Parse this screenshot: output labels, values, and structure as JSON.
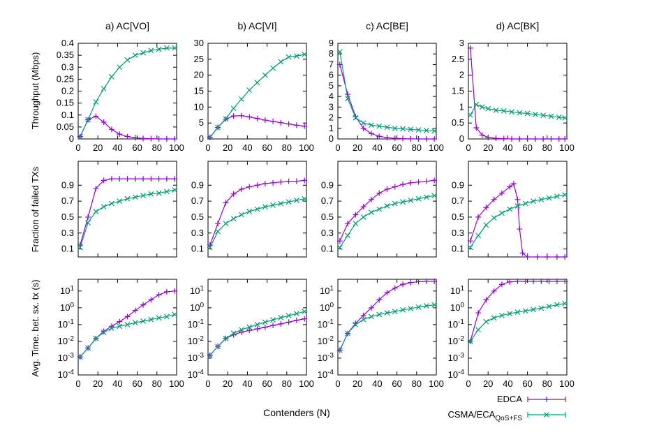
{
  "xlabel": "Contenders (N)",
  "legend": {
    "placement": "bottom-right",
    "entries": [
      {
        "label": "EDCA",
        "sub": "",
        "color": "#9400d3",
        "marker": "plus"
      },
      {
        "label": "CSMA/ECA",
        "sub": "QoS+FS",
        "color": "#009e73",
        "marker": "cross"
      }
    ]
  },
  "row_ylabels": [
    "Throughput (Mbps)",
    "Fraction of failed TXs",
    "Avg. Time. bet. sx. tx (s)"
  ],
  "colors": {
    "edca": "#9400d3",
    "csma": "#009e73"
  },
  "chart_data": [
    {
      "type": "line",
      "title": "a) AC[VO]",
      "ylabel": "Throughput (Mbps)",
      "xlim": [
        0,
        100
      ],
      "ylim": [
        0,
        0.4
      ],
      "grid": false,
      "scale": "linear",
      "xticks": [
        "0",
        "20",
        "40",
        "60",
        "80",
        "100"
      ],
      "yticks": [
        "0",
        "0.05",
        "0.1",
        "0.15",
        "0.2",
        "0.25",
        "0.3",
        "0.35",
        "0.4"
      ],
      "x": [
        2,
        10,
        18,
        26,
        34,
        42,
        50,
        58,
        66,
        74,
        82,
        90,
        98
      ],
      "series": [
        {
          "name": "EDCA",
          "values": [
            0.01,
            0.08,
            0.095,
            0.07,
            0.04,
            0.02,
            0.01,
            0.005,
            0.002,
            0.001,
            0,
            0,
            0
          ]
        },
        {
          "name": "CSMA/ECA QoS+FS",
          "values": [
            0.01,
            0.08,
            0.155,
            0.21,
            0.26,
            0.3,
            0.33,
            0.35,
            0.36,
            0.37,
            0.375,
            0.38,
            0.38
          ]
        }
      ]
    },
    {
      "type": "line",
      "title": "b) AC[VI]",
      "ylabel": "",
      "xlim": [
        0,
        100
      ],
      "ylim": [
        0,
        30
      ],
      "grid": false,
      "scale": "linear",
      "xticks": [
        "0",
        "20",
        "40",
        "60",
        "80",
        "100"
      ],
      "yticks": [
        "0",
        "5",
        "10",
        "15",
        "20",
        "25",
        "30"
      ],
      "x": [
        2,
        10,
        18,
        26,
        34,
        42,
        50,
        58,
        66,
        74,
        82,
        90,
        98
      ],
      "series": [
        {
          "name": "EDCA",
          "values": [
            0.5,
            3.6,
            6.2,
            7.2,
            7.3,
            6.9,
            6.4,
            5.9,
            5.5,
            5.1,
            4.7,
            4.3,
            4.0
          ]
        },
        {
          "name": "CSMA/ECA QoS+FS",
          "values": [
            0.5,
            3.6,
            6.3,
            9.6,
            12.5,
            15.3,
            17.7,
            20.0,
            22.2,
            24.2,
            25.7,
            26.0,
            26.5
          ]
        }
      ]
    },
    {
      "type": "line",
      "title": "c) AC[BE]",
      "ylabel": "",
      "xlim": [
        0,
        100
      ],
      "ylim": [
        0,
        9
      ],
      "grid": false,
      "scale": "linear",
      "xticks": [
        "0",
        "20",
        "40",
        "60",
        "80",
        "100"
      ],
      "yticks": [
        "0",
        "1",
        "2",
        "3",
        "4",
        "5",
        "6",
        "7",
        "8",
        "9"
      ],
      "x": [
        2,
        10,
        18,
        26,
        34,
        42,
        50,
        58,
        66,
        74,
        82,
        90,
        98
      ],
      "series": [
        {
          "name": "EDCA",
          "values": [
            7.0,
            4.2,
            2.1,
            1.0,
            0.5,
            0.25,
            0.12,
            0.06,
            0.03,
            0.01,
            0,
            0,
            0
          ]
        },
        {
          "name": "CSMA/ECA QoS+FS",
          "values": [
            8.2,
            3.8,
            2.0,
            1.5,
            1.3,
            1.2,
            1.1,
            1.0,
            0.95,
            0.9,
            0.85,
            0.8,
            0.75
          ]
        }
      ]
    },
    {
      "type": "line",
      "title": "d) AC[BK]",
      "ylabel": "",
      "xlim": [
        0,
        100
      ],
      "ylim": [
        0,
        3
      ],
      "grid": false,
      "scale": "linear",
      "xticks": [
        "0",
        "20",
        "40",
        "60",
        "80",
        "100"
      ],
      "yticks": [
        "0",
        "0.5",
        "1",
        "1.5",
        "2",
        "2.5",
        "3"
      ],
      "x": [
        2,
        8,
        14,
        20,
        28,
        36,
        44,
        52,
        60,
        68,
        76,
        84,
        92,
        98
      ],
      "series": [
        {
          "name": "EDCA",
          "values": [
            2.85,
            0.35,
            0.12,
            0.05,
            0.02,
            0.01,
            0,
            0,
            0,
            0,
            0,
            0,
            0,
            0
          ]
        },
        {
          "name": "CSMA/ECA QoS+FS",
          "values": [
            0.75,
            1.08,
            1.0,
            0.95,
            0.9,
            0.88,
            0.85,
            0.82,
            0.8,
            0.77,
            0.74,
            0.71,
            0.68,
            0.66
          ]
        }
      ]
    },
    {
      "type": "line",
      "title": "",
      "ylabel": "Fraction of failed TXs",
      "xlim": [
        0,
        100
      ],
      "ylim": [
        0,
        1.2
      ],
      "grid": false,
      "scale": "linear",
      "xticks": [],
      "yticks": [
        "0.1",
        "0.3",
        "0.5",
        "0.7",
        "0.9"
      ],
      "x": [
        2,
        10,
        18,
        26,
        34,
        42,
        50,
        58,
        66,
        74,
        82,
        90,
        98
      ],
      "series": [
        {
          "name": "EDCA",
          "values": [
            0.15,
            0.5,
            0.86,
            0.96,
            0.98,
            0.98,
            0.98,
            0.98,
            0.98,
            0.98,
            0.98,
            0.98,
            0.98
          ]
        },
        {
          "name": "CSMA/ECA QoS+FS",
          "values": [
            0.12,
            0.43,
            0.57,
            0.63,
            0.67,
            0.7,
            0.73,
            0.75,
            0.77,
            0.79,
            0.8,
            0.82,
            0.84
          ]
        }
      ]
    },
    {
      "type": "line",
      "title": "",
      "ylabel": "",
      "xlim": [
        0,
        100
      ],
      "ylim": [
        0,
        1.2
      ],
      "grid": false,
      "scale": "linear",
      "xticks": [],
      "yticks": [
        "0.1",
        "0.3",
        "0.5",
        "0.7",
        "0.9"
      ],
      "x": [
        2,
        10,
        18,
        26,
        34,
        42,
        50,
        58,
        66,
        74,
        82,
        90,
        98
      ],
      "series": [
        {
          "name": "EDCA",
          "values": [
            0.15,
            0.42,
            0.68,
            0.79,
            0.85,
            0.88,
            0.9,
            0.92,
            0.93,
            0.94,
            0.95,
            0.95,
            0.96
          ]
        },
        {
          "name": "CSMA/ECA QoS+FS",
          "values": [
            0.12,
            0.32,
            0.42,
            0.48,
            0.53,
            0.57,
            0.6,
            0.63,
            0.65,
            0.67,
            0.69,
            0.71,
            0.73
          ]
        }
      ]
    },
    {
      "type": "line",
      "title": "",
      "ylabel": "",
      "xlim": [
        0,
        100
      ],
      "ylim": [
        0,
        1.2
      ],
      "grid": false,
      "scale": "linear",
      "xticks": [],
      "yticks": [
        "0.1",
        "0.3",
        "0.5",
        "0.7",
        "0.9"
      ],
      "x": [
        2,
        10,
        18,
        26,
        34,
        42,
        50,
        58,
        66,
        74,
        82,
        90,
        98
      ],
      "series": [
        {
          "name": "EDCA",
          "values": [
            0.2,
            0.42,
            0.53,
            0.63,
            0.72,
            0.8,
            0.85,
            0.88,
            0.91,
            0.93,
            0.94,
            0.95,
            0.96
          ]
        },
        {
          "name": "CSMA/ECA QoS+FS",
          "values": [
            0.12,
            0.27,
            0.42,
            0.5,
            0.56,
            0.6,
            0.64,
            0.67,
            0.69,
            0.71,
            0.73,
            0.75,
            0.77
          ]
        }
      ]
    },
    {
      "type": "line",
      "title": "",
      "ylabel": "",
      "xlim": [
        0,
        100
      ],
      "ylim": [
        0,
        1.2
      ],
      "grid": false,
      "scale": "linear",
      "xticks": [],
      "yticks": [
        "0.1",
        "0.3",
        "0.5",
        "0.7",
        "0.9"
      ],
      "x": [
        2,
        10,
        18,
        26,
        34,
        42,
        46,
        50,
        52,
        55,
        60,
        70,
        80,
        90,
        98
      ],
      "series": [
        {
          "name": "EDCA",
          "values": [
            0.2,
            0.5,
            0.62,
            0.72,
            0.8,
            0.88,
            0.92,
            0.72,
            0.35,
            0.05,
            0,
            0,
            0,
            0,
            0
          ]
        },
        {
          "name": "CSMA/ECA QoS+FS",
          "x": [
            2,
            10,
            18,
            26,
            34,
            42,
            50,
            58,
            66,
            74,
            82,
            90,
            98
          ],
          "values": [
            0.12,
            0.27,
            0.4,
            0.49,
            0.55,
            0.6,
            0.64,
            0.67,
            0.7,
            0.72,
            0.74,
            0.76,
            0.78
          ]
        }
      ]
    },
    {
      "type": "line",
      "title": "",
      "ylabel": "Avg. Time. bet. sx. tx (s)",
      "xlim": [
        0,
        100
      ],
      "ylim": [
        0.0001,
        50
      ],
      "grid": false,
      "scale": "log",
      "xticks": [
        "0",
        "20",
        "40",
        "60",
        "80",
        "100"
      ],
      "yticks": [
        "10^-4",
        "10^-3",
        "10^-2",
        "10^-1",
        "10^0",
        "10^1"
      ],
      "x": [
        2,
        10,
        18,
        26,
        34,
        42,
        50,
        58,
        66,
        74,
        82,
        90,
        98
      ],
      "series": [
        {
          "name": "EDCA",
          "values": [
            0.0012,
            0.004,
            0.015,
            0.04,
            0.08,
            0.15,
            0.3,
            0.7,
            1.5,
            3.0,
            6.0,
            9.0,
            10.0
          ]
        },
        {
          "name": "CSMA/ECA QoS+FS",
          "values": [
            0.0012,
            0.004,
            0.015,
            0.035,
            0.06,
            0.08,
            0.1,
            0.13,
            0.16,
            0.2,
            0.25,
            0.3,
            0.4
          ]
        }
      ]
    },
    {
      "type": "line",
      "title": "",
      "ylabel": "",
      "xlim": [
        0,
        100
      ],
      "ylim": [
        0.0001,
        50
      ],
      "grid": false,
      "scale": "log",
      "xticks": [
        "0",
        "20",
        "40",
        "60",
        "80",
        "100"
      ],
      "yticks": [
        "10^-4",
        "10^-3",
        "10^-2",
        "10^-1",
        "10^0",
        "10^1"
      ],
      "x": [
        2,
        10,
        18,
        26,
        34,
        42,
        50,
        58,
        66,
        74,
        82,
        90,
        98
      ],
      "series": [
        {
          "name": "EDCA",
          "values": [
            0.0015,
            0.005,
            0.015,
            0.025,
            0.035,
            0.045,
            0.055,
            0.07,
            0.09,
            0.11,
            0.14,
            0.18,
            0.22
          ]
        },
        {
          "name": "CSMA/ECA QoS+FS",
          "values": [
            0.0015,
            0.005,
            0.015,
            0.03,
            0.05,
            0.07,
            0.1,
            0.14,
            0.19,
            0.26,
            0.34,
            0.45,
            0.6
          ]
        }
      ]
    },
    {
      "type": "line",
      "title": "",
      "ylabel": "",
      "xlim": [
        0,
        100
      ],
      "ylim": [
        0.0001,
        50
      ],
      "grid": false,
      "scale": "log",
      "xticks": [
        "0",
        "20",
        "40",
        "60",
        "80",
        "100"
      ],
      "yticks": [
        "10^-4",
        "10^-3",
        "10^-2",
        "10^-1",
        "10^0",
        "10^1"
      ],
      "x": [
        2,
        10,
        18,
        26,
        34,
        42,
        50,
        58,
        66,
        74,
        82,
        90,
        98
      ],
      "series": [
        {
          "name": "EDCA",
          "values": [
            0.003,
            0.03,
            0.12,
            0.35,
            1.0,
            3.0,
            8.0,
            15.0,
            25.0,
            32.0,
            36.0,
            38.0,
            38.0
          ]
        },
        {
          "name": "CSMA/ECA QoS+FS",
          "values": [
            0.003,
            0.03,
            0.1,
            0.2,
            0.3,
            0.4,
            0.5,
            0.6,
            0.75,
            0.9,
            1.1,
            1.3,
            1.5
          ]
        }
      ]
    },
    {
      "type": "line",
      "title": "",
      "ylabel": "",
      "xlim": [
        0,
        100
      ],
      "ylim": [
        0.0001,
        50
      ],
      "grid": false,
      "scale": "log",
      "xticks": [
        "0",
        "20",
        "40",
        "60",
        "80",
        "100"
      ],
      "yticks": [
        "10^-4",
        "10^-3",
        "10^-2",
        "10^-1",
        "10^0",
        "10^1"
      ],
      "x": [
        2,
        10,
        18,
        26,
        34,
        42,
        50,
        58,
        66,
        74,
        82,
        90,
        98
      ],
      "series": [
        {
          "name": "EDCA",
          "values": [
            0.01,
            0.5,
            3.0,
            10.0,
            25.0,
            35.0,
            38.0,
            38.0,
            38.0,
            38.0,
            38.0,
            38.0,
            38.0
          ]
        },
        {
          "name": "CSMA/ECA QoS+FS",
          "values": [
            0.01,
            0.05,
            0.15,
            0.25,
            0.35,
            0.45,
            0.55,
            0.65,
            0.8,
            0.95,
            1.2,
            1.5,
            1.8
          ]
        }
      ]
    }
  ]
}
